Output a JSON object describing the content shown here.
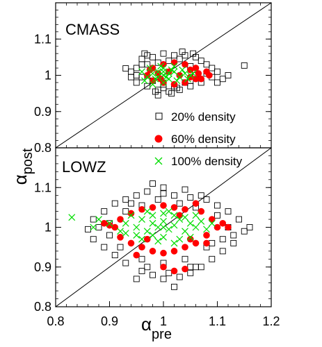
{
  "axes": {
    "ylabel_main": "α",
    "ylabel_sub": "post",
    "xlabel_main": "α",
    "xlabel_sub": "pre",
    "x_ticks": [
      "0.8",
      "0.9",
      "1",
      "1.1",
      "1.2"
    ],
    "y_ticks": [
      "0.8",
      "0.9",
      "1",
      "1.1"
    ]
  },
  "legend": {
    "items": [
      {
        "label": "20% density",
        "marker": "square",
        "color": "#000000"
      },
      {
        "label": "60% density",
        "marker": "dot",
        "color": "#ff0000"
      },
      {
        "label": "100% density",
        "marker": "x",
        "color": "#00dd00"
      }
    ]
  },
  "chart_data": [
    {
      "type": "scatter",
      "panel_label": "CMASS",
      "xlim": [
        0.8,
        1.2
      ],
      "ylim": [
        0.8,
        1.2
      ],
      "grid": false,
      "reference_line": "y = x",
      "series": [
        {
          "name": "20% density",
          "marker": "square",
          "color": "#000000",
          "points": [
            [
              1.15,
              1.027
            ],
            [
              0.93,
              1.019
            ],
            [
              0.96,
              1.03
            ],
            [
              0.97,
              1.055
            ],
            [
              0.95,
              1.0
            ],
            [
              0.99,
              0.96
            ],
            [
              1.0,
              0.965
            ],
            [
              1.02,
              0.97
            ],
            [
              1.05,
              0.985
            ],
            [
              1.08,
              1.005
            ],
            [
              1.09,
              1.02
            ],
            [
              1.07,
              1.04
            ],
            [
              1.06,
              1.05
            ],
            [
              1.04,
              1.055
            ],
            [
              1.02,
              1.055
            ],
            [
              1.0,
              1.06
            ],
            [
              0.98,
              1.05
            ],
            [
              0.96,
              1.045
            ],
            [
              0.95,
              1.02
            ],
            [
              0.94,
              1.01
            ],
            [
              0.95,
              0.98
            ],
            [
              0.97,
              0.97
            ],
            [
              0.99,
              0.945
            ],
            [
              1.01,
              0.955
            ],
            [
              1.03,
              0.96
            ],
            [
              1.05,
              0.97
            ],
            [
              1.07,
              0.98
            ],
            [
              1.09,
              0.995
            ],
            [
              1.1,
              1.01
            ],
            [
              1.08,
              1.03
            ],
            [
              1.03,
              1.045
            ],
            [
              1.01,
              1.04
            ],
            [
              0.99,
              1.035
            ],
            [
              0.97,
              1.03
            ],
            [
              0.96,
              0.995
            ],
            [
              0.98,
              0.985
            ],
            [
              1.0,
              0.975
            ],
            [
              1.04,
              0.98
            ],
            [
              1.06,
              1.0
            ],
            [
              1.05,
              1.025
            ],
            [
              1.12,
              1.0
            ],
            [
              1.11,
              0.99
            ],
            [
              1.1,
              0.98
            ],
            [
              0.94,
              0.995
            ],
            [
              0.965,
              1.06
            ],
            [
              1.035,
              1.065
            ],
            [
              1.055,
              1.06
            ],
            [
              0.985,
              0.955
            ],
            [
              1.015,
              0.95
            ],
            [
              1.025,
              0.965
            ]
          ]
        },
        {
          "name": "60% density",
          "marker": "dot",
          "color": "#ff0000",
          "points": [
            [
              1.08,
              1.01
            ],
            [
              1.07,
              0.99
            ],
            [
              1.06,
              1.02
            ],
            [
              1.05,
              0.995
            ],
            [
              1.04,
              1.03
            ],
            [
              1.02,
              1.035
            ],
            [
              1.0,
              1.03
            ],
            [
              0.98,
              1.02
            ],
            [
              0.97,
              1.0
            ],
            [
              0.98,
              0.985
            ],
            [
              1.0,
              0.98
            ],
            [
              1.02,
              0.975
            ],
            [
              1.04,
              0.98
            ],
            [
              1.06,
              0.99
            ],
            [
              1.085,
              1.0
            ],
            [
              1.03,
              1.0
            ],
            [
              0.99,
              1.005
            ],
            [
              1.01,
              1.01
            ],
            [
              0.975,
              1.015
            ],
            [
              1.05,
              1.015
            ],
            [
              1.065,
              1.005
            ],
            [
              0.995,
              0.99
            ]
          ]
        },
        {
          "name": "100% density",
          "marker": "x",
          "color": "#00dd00",
          "points": [
            [
              1.0,
              1.0
            ],
            [
              0.99,
              1.01
            ],
            [
              1.01,
              0.99
            ],
            [
              0.98,
              1.005
            ],
            [
              1.02,
              1.01
            ],
            [
              1.03,
              0.995
            ],
            [
              0.97,
              0.995
            ],
            [
              1.0,
              1.02
            ],
            [
              1.0,
              0.98
            ],
            [
              0.985,
              0.99
            ],
            [
              1.015,
              1.015
            ],
            [
              1.04,
              1.005
            ],
            [
              0.96,
              1.01
            ],
            [
              1.05,
              1.0
            ],
            [
              0.995,
              1.025
            ],
            [
              1.025,
              0.985
            ],
            [
              0.975,
              1.02
            ],
            [
              1.01,
              1.005
            ],
            [
              0.99,
              0.995
            ],
            [
              1.035,
              1.015
            ],
            [
              0.965,
              0.985
            ],
            [
              1.045,
              0.99
            ],
            [
              1.0,
              1.01
            ],
            [
              1.02,
              1.025
            ],
            [
              0.98,
              0.975
            ],
            [
              1.055,
              1.005
            ],
            [
              1.005,
              0.995
            ]
          ]
        }
      ]
    },
    {
      "type": "scatter",
      "panel_label": "LOWZ",
      "xlim": [
        0.8,
        1.2
      ],
      "ylim": [
        0.8,
        1.2
      ],
      "grid": false,
      "reference_line": "y = x",
      "series": [
        {
          "name": "20% density",
          "marker": "square",
          "color": "#000000",
          "points": [
            [
              0.98,
              1.11
            ],
            [
              1.0,
              1.085
            ],
            [
              1.02,
              1.08
            ],
            [
              1.05,
              1.075
            ],
            [
              1.08,
              1.07
            ],
            [
              1.1,
              1.055
            ],
            [
              1.12,
              1.04
            ],
            [
              1.14,
              1.02
            ],
            [
              1.15,
              0.99
            ],
            [
              1.13,
              0.96
            ],
            [
              1.11,
              0.94
            ],
            [
              1.09,
              0.92
            ],
            [
              1.07,
              0.9
            ],
            [
              1.05,
              0.885
            ],
            [
              1.03,
              0.875
            ],
            [
              1.0,
              0.87
            ],
            [
              0.98,
              0.88
            ],
            [
              0.96,
              0.89
            ],
            [
              0.93,
              0.91
            ],
            [
              0.91,
              0.93
            ],
            [
              0.89,
              0.95
            ],
            [
              0.87,
              0.97
            ],
            [
              0.86,
              0.995
            ],
            [
              0.87,
              1.02
            ],
            [
              0.89,
              1.04
            ],
            [
              0.91,
              1.06
            ],
            [
              0.93,
              1.07
            ],
            [
              0.95,
              1.08
            ],
            [
              0.97,
              1.09
            ],
            [
              1.0,
              1.1
            ],
            [
              1.06,
              1.05
            ],
            [
              1.1,
              1.03
            ],
            [
              1.12,
              1.0
            ],
            [
              1.11,
              0.97
            ],
            [
              1.08,
              0.95
            ],
            [
              1.04,
              0.92
            ],
            [
              1.0,
              0.91
            ],
            [
              0.96,
              0.92
            ],
            [
              0.92,
              0.95
            ],
            [
              0.9,
              0.98
            ],
            [
              0.9,
              1.01
            ],
            [
              0.93,
              1.04
            ],
            [
              0.96,
              1.055
            ],
            [
              1.03,
              1.06
            ],
            [
              1.06,
              0.9
            ],
            [
              0.95,
              0.87
            ],
            [
              1.02,
              0.85
            ],
            [
              1.16,
              1.0
            ],
            [
              0.88,
              1.0
            ],
            [
              1.09,
              0.96
            ],
            [
              1.13,
              0.98
            ],
            [
              0.94,
              1.06
            ],
            [
              0.99,
              1.07
            ],
            [
              1.04,
              1.095
            ],
            [
              1.07,
              1.08
            ],
            [
              0.97,
              0.9
            ],
            [
              1.01,
              0.885
            ],
            [
              1.05,
              0.9
            ]
          ]
        },
        {
          "name": "60% density",
          "marker": "dot",
          "color": "#ff0000",
          "points": [
            [
              1.07,
              1.04
            ],
            [
              1.09,
              1.02
            ],
            [
              1.1,
              1.0
            ],
            [
              1.08,
              0.98
            ],
            [
              1.06,
              0.96
            ],
            [
              1.04,
              0.95
            ],
            [
              1.02,
              0.94
            ],
            [
              1.0,
              0.935
            ],
            [
              0.98,
              0.94
            ],
            [
              0.96,
              0.95
            ],
            [
              0.94,
              0.96
            ],
            [
              0.92,
              0.975
            ],
            [
              0.91,
              1.0
            ],
            [
              0.92,
              1.02
            ],
            [
              0.94,
              1.035
            ],
            [
              0.96,
              1.045
            ],
            [
              0.98,
              1.05
            ],
            [
              1.0,
              1.055
            ],
            [
              1.02,
              1.05
            ],
            [
              1.04,
              1.045
            ],
            [
              1.05,
              0.97
            ],
            [
              1.03,
              1.03
            ],
            [
              0.97,
              0.97
            ],
            [
              1.11,
              1.01
            ],
            [
              0.9,
              1.005
            ],
            [
              1.0,
              0.9
            ],
            [
              1.02,
              0.89
            ],
            [
              1.04,
              0.895
            ],
            [
              1.06,
              1.06
            ],
            [
              0.95,
              0.93
            ],
            [
              1.08,
              0.96
            ],
            [
              1.12,
              1.0
            ],
            [
              0.89,
              1.01
            ]
          ]
        },
        {
          "name": "100% density",
          "marker": "x",
          "color": "#00dd00",
          "points": [
            [
              0.83,
              1.025
            ],
            [
              0.87,
              1.0
            ],
            [
              0.88,
              1.02
            ],
            [
              0.9,
              1.01
            ],
            [
              0.92,
              0.99
            ],
            [
              0.93,
              1.01
            ],
            [
              0.95,
              1.0
            ],
            [
              0.96,
              1.02
            ],
            [
              0.97,
              0.99
            ],
            [
              0.98,
              1.01
            ],
            [
              0.99,
              1.0
            ],
            [
              1.0,
              1.015
            ],
            [
              1.01,
              0.995
            ],
            [
              1.02,
              1.005
            ],
            [
              1.03,
              1.02
            ],
            [
              1.04,
              0.99
            ],
            [
              1.05,
              1.01
            ],
            [
              1.06,
              1.0
            ],
            [
              1.07,
              1.015
            ],
            [
              1.08,
              0.995
            ],
            [
              0.94,
              1.03
            ],
            [
              0.96,
              0.97
            ],
            [
              0.98,
              1.03
            ],
            [
              1.0,
              0.975
            ],
            [
              1.02,
              1.03
            ],
            [
              1.04,
              1.025
            ],
            [
              1.05,
              0.975
            ],
            [
              1.0,
              1.035
            ],
            [
              0.99,
              0.965
            ],
            [
              1.03,
              0.97
            ],
            [
              0.97,
              1.04
            ],
            [
              1.06,
              1.03
            ],
            [
              0.95,
              0.98
            ],
            [
              1.09,
              1.01
            ],
            [
              1.01,
              1.04
            ],
            [
              0.93,
              0.985
            ],
            [
              1.02,
              0.96
            ],
            [
              0.98,
              0.98
            ],
            [
              1.0,
              1.0
            ]
          ]
        }
      ]
    }
  ]
}
